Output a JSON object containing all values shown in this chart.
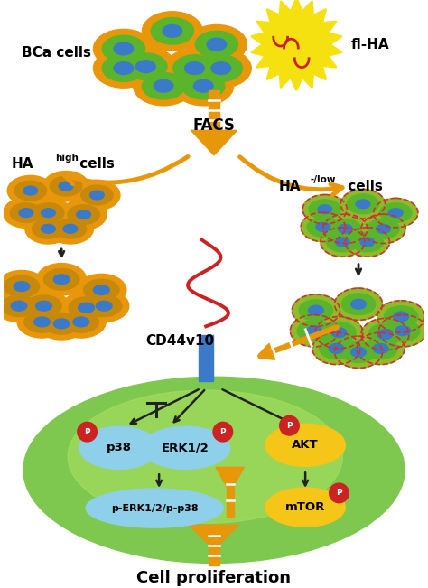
{
  "title": "Cell proliferation",
  "facs_label": "FACS",
  "cd44v10_label": "CD44v10",
  "bca_label": "BCa cells",
  "flha_label": "fl-HA",
  "ha_high_label": "HA",
  "ha_high_super": "high",
  "ha_high_suffix": " cells",
  "ha_low_label": "HA",
  "ha_low_super": "-/low",
  "ha_low_suffix": " cells",
  "p38_label": "p38",
  "erk_label": "ERK1/2",
  "perk_label": "p-ERK1/2/p-p38",
  "akt_label": "AKT",
  "mtor_label": "mTOR",
  "p_label": "P",
  "arrow_color": "#E8960A",
  "black_arrow_color": "#222222",
  "bca_outer": "#E8960A",
  "bca_inner": "#5ab52a",
  "bca_nucleus": "#3a7ac8",
  "ha_high_outer": "#E8960A",
  "ha_high_inner": "#c8880a",
  "ha_high_nucleus": "#3a7ac8",
  "ha_low_outer": "#8fba2a",
  "ha_low_inner": "#5ab52a",
  "ha_low_nucleus": "#3a7ac8",
  "ha_low_dotted": "#cc3333",
  "p_badge_color": "#cc2222",
  "blue_ellipse_color": "#8ecfea",
  "yellow_ellipse_color": "#f5c518",
  "green_cell_outer": "#7ec850",
  "green_cell_inner": "#a0d860",
  "cd44_red": "#cc2222",
  "cd44_blue": "#3a7ac8",
  "starburst_color": "#f5e010",
  "starburst_edge": "#e8c800",
  "bg_color": "white"
}
